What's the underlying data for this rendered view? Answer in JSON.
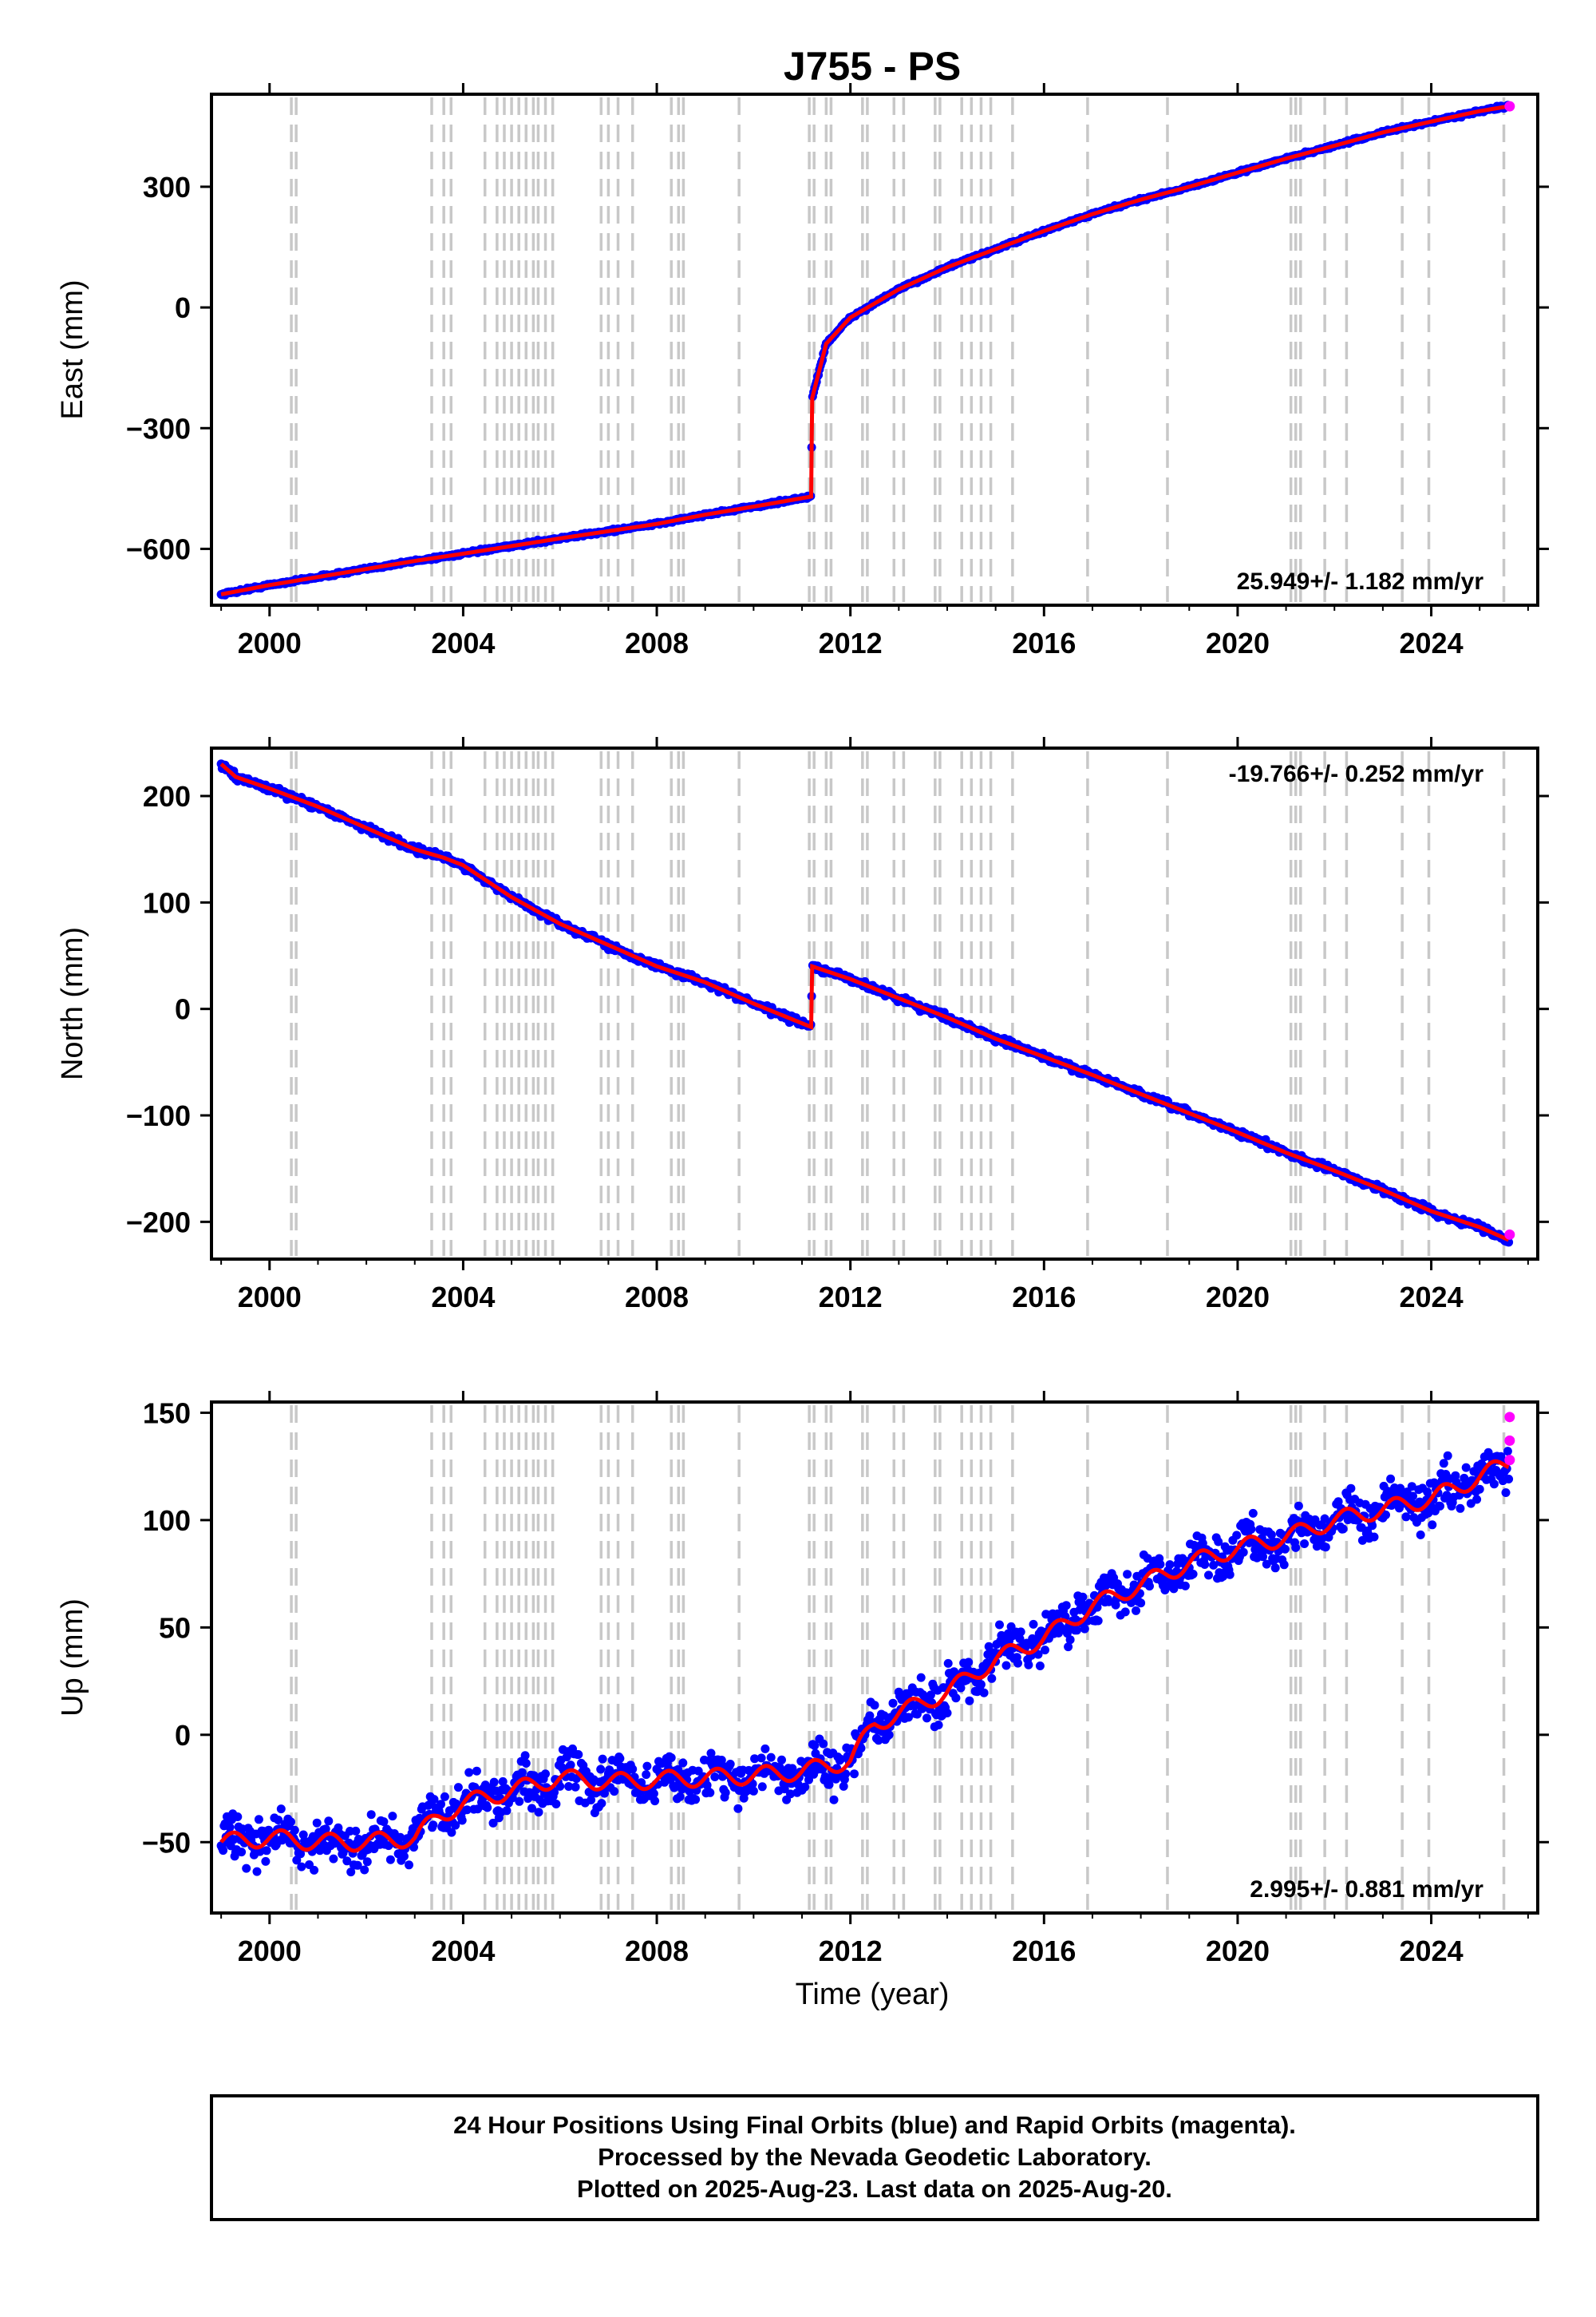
{
  "title": "J755 - PS",
  "x_axis": {
    "label": "Time (year)",
    "range": [
      1998.8,
      2026.2
    ],
    "ticks": [
      2000,
      2004,
      2008,
      2012,
      2016,
      2020,
      2024
    ]
  },
  "colors": {
    "final": "#0000ff",
    "rapid": "#ff00ff",
    "model": "#ff0000",
    "steps": "#c8c8c8"
  },
  "step_epochs": [
    2000.45,
    2000.55,
    2003.35,
    2003.6,
    2003.75,
    2004.45,
    2004.7,
    2004.85,
    2005.0,
    2005.15,
    2005.3,
    2005.45,
    2005.55,
    2005.7,
    2005.85,
    2006.85,
    2007.0,
    2007.2,
    2007.5,
    2008.3,
    2008.45,
    2008.55,
    2009.7,
    2011.15,
    2011.25,
    2011.5,
    2011.6,
    2012.25,
    2012.35,
    2012.9,
    2013.1,
    2013.75,
    2013.85,
    2014.3,
    2014.5,
    2014.7,
    2014.9,
    2015.35,
    2016.9,
    2018.55,
    2021.1,
    2021.2,
    2021.3,
    2021.8,
    2022.25,
    2023.4,
    2023.95,
    2025.5
  ],
  "chart_data": [
    {
      "type": "scatter",
      "component": "East",
      "ylabel": "East (mm)",
      "ylim": [
        -740,
        530
      ],
      "yticks": [
        -600,
        -300,
        0,
        300
      ],
      "rate_label": "25.949+/- 1.182 mm/yr",
      "rate_position": "bottom-right",
      "series": [
        {
          "name": "Final Orbits",
          "color": "blue",
          "x": [
            1999.0,
            2000.0,
            2001.0,
            2002.0,
            2003.0,
            2004.0,
            2005.0,
            2006.0,
            2007.0,
            2008.0,
            2009.0,
            2010.0,
            2011.19,
            2011.21,
            2011.5,
            2012.0,
            2013.0,
            2014.0,
            2015.0,
            2016.0,
            2017.0,
            2018.0,
            2019.0,
            2020.0,
            2021.0,
            2022.0,
            2023.0,
            2024.0,
            2025.0,
            2025.6
          ],
          "y": [
            -713,
            -690,
            -670,
            -650,
            -630,
            -612,
            -593,
            -574,
            -556,
            -538,
            -515,
            -495,
            -470,
            -225,
            -90,
            -25,
            45,
            100,
            145,
            190,
            232,
            268,
            300,
            335,
            370,
            402,
            435,
            462,
            488,
            500
          ]
        },
        {
          "name": "Rapid Orbits",
          "color": "magenta",
          "x": [
            2025.62
          ],
          "y": [
            500
          ]
        }
      ]
    },
    {
      "type": "scatter",
      "component": "North",
      "ylabel": "North (mm)",
      "ylim": [
        -235,
        245
      ],
      "yticks": [
        -200,
        -100,
        0,
        100,
        200
      ],
      "rate_label": "-19.766+/- 0.252 mm/yr",
      "rate_position": "top-right",
      "series": [
        {
          "name": "Final Orbits",
          "color": "blue",
          "x": [
            1999.0,
            1999.3,
            2000.0,
            2001.0,
            2002.0,
            2003.0,
            2003.6,
            2004.0,
            2005.0,
            2006.0,
            2007.0,
            2008.0,
            2009.0,
            2010.0,
            2011.19,
            2011.21,
            2012.0,
            2013.0,
            2014.0,
            2015.0,
            2016.0,
            2017.0,
            2018.0,
            2019.0,
            2020.0,
            2021.0,
            2022.0,
            2023.0,
            2024.0,
            2025.0,
            2025.6
          ],
          "y": [
            230,
            218,
            207,
            190,
            170,
            150,
            142,
            135,
            105,
            80,
            60,
            40,
            25,
            5,
            -17,
            40,
            28,
            10,
            -8,
            -28,
            -45,
            -62,
            -80,
            -98,
            -116,
            -135,
            -152,
            -170,
            -190,
            -205,
            -217
          ]
        },
        {
          "name": "Rapid Orbits",
          "color": "magenta",
          "x": [
            2025.62
          ],
          "y": [
            -212
          ]
        }
      ]
    },
    {
      "type": "scatter",
      "component": "Up",
      "ylabel": "Up (mm)",
      "ylim": [
        -83,
        155
      ],
      "yticks": [
        -50,
        0,
        50,
        100,
        150
      ],
      "rate_label": "2.995+/- 0.881 mm/yr",
      "rate_position": "bottom-right",
      "series": [
        {
          "name": "Final Orbits",
          "color": "blue",
          "x": [
            1999.0,
            2000.0,
            2001.0,
            2002.0,
            2003.0,
            2003.5,
            2004.0,
            2005.0,
            2006.0,
            2007.0,
            2008.0,
            2009.0,
            2010.0,
            2011.0,
            2012.0,
            2012.5,
            2013.0,
            2014.0,
            2015.0,
            2016.0,
            2017.0,
            2018.0,
            2019.0,
            2020.0,
            2021.0,
            2022.0,
            2023.0,
            2024.0,
            2025.0,
            2025.6
          ],
          "y": [
            -50,
            -48,
            -50,
            -50,
            -48,
            -38,
            -32,
            -26,
            -20,
            -22,
            -21,
            -20,
            -19,
            -17,
            -12,
            5,
            10,
            20,
            35,
            45,
            60,
            70,
            80,
            87,
            92,
            100,
            105,
            110,
            120,
            127
          ]
        },
        {
          "name": "Rapid Orbits",
          "color": "magenta",
          "x": [
            2025.62,
            2025.62,
            2025.62
          ],
          "y": [
            148,
            137,
            128
          ]
        }
      ]
    }
  ],
  "footer": {
    "line1": "24 Hour Positions Using Final Orbits (blue) and Rapid Orbits (magenta).",
    "line2": "Processed by the Nevada Geodetic Laboratory.",
    "line3": "Plotted on 2025-Aug-23. Last data on 2025-Aug-20."
  }
}
